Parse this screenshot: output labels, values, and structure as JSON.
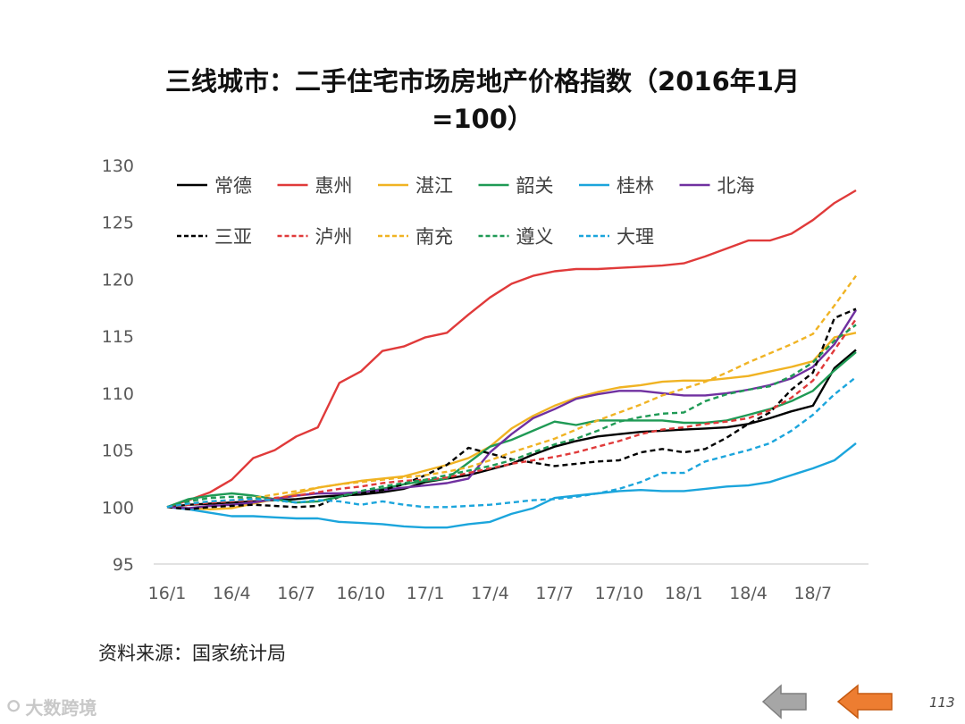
{
  "chart_data": {
    "type": "line",
    "title": "三线城市：二手住宅市场房地产价格指数（2016年1月=100）",
    "xlabel": "",
    "ylabel": "",
    "ylim": [
      95,
      130
    ],
    "yticks": [
      95,
      100,
      105,
      110,
      115,
      120,
      125,
      130
    ],
    "x_tick_labels": [
      "16/1",
      "16/4",
      "16/7",
      "16/10",
      "17/1",
      "17/4",
      "17/7",
      "17/10",
      "18/1",
      "18/4",
      "18/7"
    ],
    "x": [
      "16/1",
      "16/2",
      "16/3",
      "16/4",
      "16/5",
      "16/6",
      "16/7",
      "16/8",
      "16/9",
      "16/10",
      "16/11",
      "16/12",
      "17/1",
      "17/2",
      "17/3",
      "17/4",
      "17/5",
      "17/6",
      "17/7",
      "17/8",
      "17/9",
      "17/10",
      "17/11",
      "17/12",
      "18/1",
      "18/2",
      "18/3",
      "18/4",
      "18/5",
      "18/6",
      "18/7",
      "18/8",
      "18/9"
    ],
    "legend_placement": "top-left",
    "grid": false,
    "series": [
      {
        "name": "常德",
        "color": "#000000",
        "style": "solid",
        "values": [
          100,
          100.2,
          100.3,
          100.4,
          100.5,
          100.6,
          100.7,
          100.9,
          101.0,
          101.1,
          101.3,
          101.6,
          102.2,
          102.5,
          102.8,
          103.3,
          103.8,
          104.6,
          105.3,
          105.8,
          106.2,
          106.4,
          106.6,
          106.7,
          106.8,
          106.9,
          107.0,
          107.3,
          107.8,
          108.4,
          108.9,
          112.2,
          113.8
        ]
      },
      {
        "name": "惠州",
        "color": "#e03a3a",
        "style": "solid",
        "values": [
          100,
          100.6,
          101.3,
          102.4,
          104.3,
          105.0,
          106.2,
          107.0,
          110.9,
          111.9,
          113.7,
          114.1,
          114.9,
          115.3,
          116.9,
          118.4,
          119.6,
          120.3,
          120.7,
          120.9,
          120.9,
          121.0,
          121.1,
          121.2,
          121.4,
          122.0,
          122.7,
          123.4,
          123.4,
          124.0,
          125.2,
          126.7,
          127.8
        ]
      },
      {
        "name": "湛江",
        "color": "#f0b323",
        "style": "solid",
        "values": [
          100,
          99.9,
          99.8,
          99.9,
          100.3,
          100.7,
          101.2,
          101.7,
          102.0,
          102.3,
          102.5,
          102.7,
          103.2,
          103.7,
          104.3,
          105.3,
          106.9,
          108.0,
          108.9,
          109.6,
          110.1,
          110.5,
          110.7,
          111.0,
          111.1,
          111.1,
          111.3,
          111.5,
          111.9,
          112.3,
          112.8,
          114.9,
          115.3
        ]
      },
      {
        "name": "韶关",
        "color": "#1f9a55",
        "style": "solid",
        "values": [
          100,
          100.7,
          101.0,
          101.2,
          101.0,
          100.7,
          100.4,
          100.5,
          100.9,
          101.3,
          101.6,
          102.0,
          102.3,
          102.5,
          103.9,
          105.3,
          105.9,
          106.7,
          107.5,
          107.2,
          107.6,
          107.6,
          107.6,
          107.6,
          107.4,
          107.4,
          107.6,
          108.1,
          108.6,
          109.3,
          110.2,
          112.0,
          113.6
        ]
      },
      {
        "name": "桂林",
        "color": "#1ba5dc",
        "style": "solid",
        "values": [
          100,
          99.8,
          99.5,
          99.2,
          99.2,
          99.1,
          99.0,
          99.0,
          98.7,
          98.6,
          98.5,
          98.3,
          98.2,
          98.2,
          98.5,
          98.7,
          99.4,
          99.9,
          100.8,
          101.0,
          101.2,
          101.4,
          101.5,
          101.4,
          101.4,
          101.6,
          101.8,
          101.9,
          102.2,
          102.8,
          103.4,
          104.1,
          105.6
        ]
      },
      {
        "name": "北海",
        "color": "#7030a0",
        "style": "solid",
        "values": [
          100,
          99.9,
          100.1,
          100.2,
          100.4,
          100.7,
          101.0,
          101.2,
          101.2,
          101.3,
          101.5,
          101.7,
          101.9,
          102.1,
          102.5,
          104.8,
          106.4,
          107.8,
          108.6,
          109.5,
          109.9,
          110.2,
          110.2,
          110.0,
          109.8,
          109.8,
          110.0,
          110.3,
          110.7,
          111.3,
          112.3,
          114.3,
          117.3
        ]
      },
      {
        "name": "三亚",
        "color": "#000000",
        "style": "dash",
        "values": [
          100,
          99.8,
          100.0,
          100.1,
          100.2,
          100.1,
          100.0,
          100.1,
          100.9,
          101.2,
          101.5,
          102.0,
          102.8,
          103.7,
          105.2,
          104.7,
          104.2,
          103.9,
          103.6,
          103.8,
          104.0,
          104.1,
          104.8,
          105.1,
          104.8,
          105.1,
          106.1,
          107.3,
          108.3,
          110.3,
          111.8,
          116.6,
          117.4
        ]
      },
      {
        "name": "泸州",
        "color": "#e03a3a",
        "style": "dash",
        "values": [
          100,
          100.2,
          100.4,
          100.5,
          100.6,
          100.8,
          101.0,
          101.3,
          101.6,
          101.8,
          102.1,
          102.3,
          102.4,
          102.6,
          103.0,
          103.4,
          103.8,
          104.1,
          104.4,
          104.8,
          105.3,
          105.8,
          106.4,
          106.8,
          107.0,
          107.3,
          107.5,
          107.8,
          108.5,
          109.6,
          111.1,
          113.8,
          116.5
        ]
      },
      {
        "name": "南充",
        "color": "#f0b323",
        "style": "dash",
        "values": [
          100,
          100.3,
          100.5,
          100.6,
          100.8,
          101.1,
          101.4,
          101.7,
          102.0,
          102.2,
          102.4,
          102.6,
          102.8,
          103.1,
          103.5,
          104.1,
          104.8,
          105.4,
          106.0,
          106.8,
          107.6,
          108.3,
          109.0,
          109.8,
          110.4,
          111.0,
          111.8,
          112.7,
          113.5,
          114.3,
          115.2,
          117.7,
          120.3
        ]
      },
      {
        "name": "遵义",
        "color": "#1f9a55",
        "style": "dash",
        "values": [
          100,
          100.5,
          100.8,
          100.9,
          100.8,
          100.6,
          100.4,
          100.5,
          100.9,
          101.4,
          101.8,
          102.1,
          102.4,
          102.8,
          103.2,
          103.6,
          104.1,
          104.8,
          105.5,
          106.0,
          106.7,
          107.5,
          107.9,
          108.2,
          108.3,
          109.3,
          109.9,
          110.3,
          110.6,
          111.5,
          112.7,
          114.6,
          116.0
        ]
      },
      {
        "name": "大理",
        "color": "#1ba5dc",
        "style": "dash",
        "values": [
          100,
          100.3,
          100.5,
          100.6,
          100.7,
          100.6,
          100.4,
          100.6,
          100.5,
          100.2,
          100.5,
          100.2,
          100.0,
          100.0,
          100.1,
          100.2,
          100.4,
          100.6,
          100.7,
          100.9,
          101.2,
          101.6,
          102.2,
          103.0,
          103.0,
          104.0,
          104.5,
          105.0,
          105.6,
          106.7,
          108.1,
          109.9,
          111.4
        ]
      }
    ]
  },
  "source": "资料来源：国家统计局",
  "watermark": "大数跨境",
  "page_number": "113",
  "nav": {
    "prev_color": "#a6a6a6",
    "next_color": "#ed7d31"
  }
}
